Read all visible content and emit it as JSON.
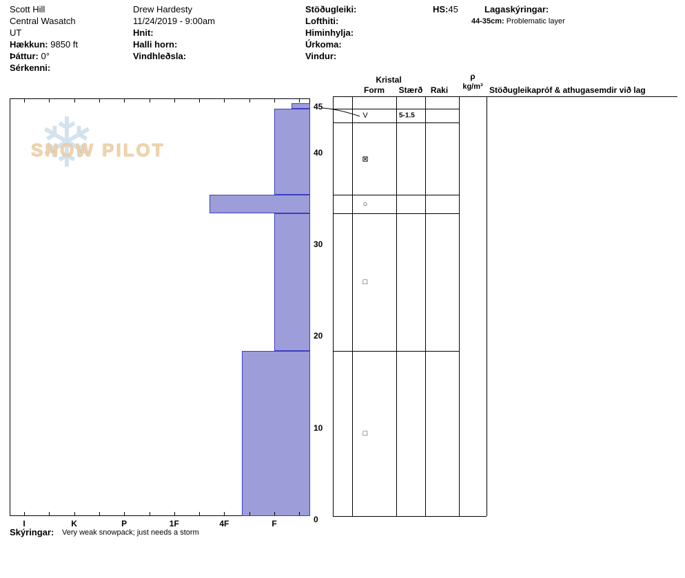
{
  "header": {
    "pit_name": "Scott Hill",
    "range": "Central Wasatch",
    "state": "UT",
    "elevation_label": "Hækkun:",
    "elevation_value": "9850 ft",
    "aspect_label": "Þáttur:",
    "aspect_value": "0°",
    "features_label": "Sérkenni:",
    "observer": "Drew Hardesty",
    "datetime": "11/24/2019 - 9:00am",
    "coords_label": "Hnit:",
    "slope_angle_label": "Halli horn:",
    "wind_loading_label": "Vindhleðsla:",
    "stability_label": "Stöðugleiki:",
    "air_temp_label": "Lofthiti:",
    "sky_cover_label": "Himinhylja:",
    "precip_label": "Úrkoma:",
    "wind_label": "Vindur:",
    "hs_label": "HS:",
    "hs_value": "45",
    "layer_notes_label": "Lagaskýringar:",
    "layer_note_range": "44-35cm:",
    "layer_note_text": "Problematic layer"
  },
  "watermark": {
    "snowflake": "❄",
    "text": "SNOW PILOT"
  },
  "table": {
    "crystal_header": "Kristal",
    "col_form": "Form",
    "col_size": "Stærð",
    "col_moisture": "Raki",
    "density_symbol": "ρ",
    "density_unit": "kg/m³",
    "comments_header": "Stöðugleikapróf & athugasemdir við lag"
  },
  "footer": {
    "notes_label": "Skýringar:",
    "notes_text": "Very weak snowpack; just needs a storm"
  },
  "colors": {
    "bar_fill": "#9d9dd9",
    "bar_border": "#3d3dc0",
    "line": "#000000"
  },
  "chart_data": {
    "type": "bar",
    "title": "Snow profile hardness vs depth",
    "orientation": "horizontal",
    "depth_unit": "cm",
    "depth_max": 45,
    "total_snow_height_cm": 45,
    "depth_ticks": [
      45,
      40,
      30,
      20,
      10,
      0
    ],
    "hardness_ticks": [
      "I",
      "K",
      "P",
      "1F",
      "4F",
      "F"
    ],
    "grid": false,
    "layers": [
      {
        "top_cm": 45,
        "bottom_cm": 44.4,
        "hardness": "F-",
        "hardness_index": 5.35,
        "grain_form": "surface-hoar",
        "grain_form_symbol": "V",
        "grain_size_mm": "5-1.5"
      },
      {
        "top_cm": 44.4,
        "bottom_cm": 35,
        "hardness": "F",
        "hardness_index": 5.0,
        "grain_form": "mixed-forms",
        "grain_form_symbol": "⊠"
      },
      {
        "top_cm": 35,
        "bottom_cm": 33,
        "hardness": "1F+",
        "hardness_index": 3.7,
        "grain_form": "rounded",
        "grain_form_symbol": "○"
      },
      {
        "top_cm": 33,
        "bottom_cm": 18,
        "hardness": "F",
        "hardness_index": 5.0,
        "grain_form": "facets",
        "grain_form_symbol": "□"
      },
      {
        "top_cm": 18,
        "bottom_cm": 0,
        "hardness": "4F",
        "hardness_index": 4.35,
        "grain_form": "facets",
        "grain_form_symbol": "□"
      }
    ]
  }
}
